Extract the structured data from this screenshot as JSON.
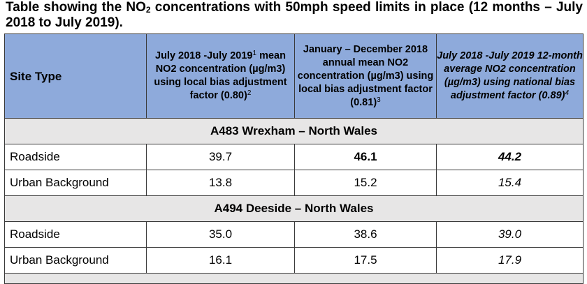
{
  "caption": {
    "before_sub": "Table showing the NO",
    "sub": "2",
    "after_sub": " concentrations with 50mph speed limits in place (12 months – July 2018 to July 2019)."
  },
  "headers": {
    "site_type": "Site Type",
    "col1": "July 2018 -July 2019",
    "col1_sup1": "1",
    "col1_rest": " mean NO2 concentration (µg/m3) using local bias adjustment factor (0.80)",
    "col1_sup2": "2",
    "col2": "January – December 2018 annual mean NO2 concentration (µg/m3) using local bias adjustment factor (0.81)",
    "col2_sup": "3",
    "col3": "July 2018 -July 2019 12-month average NO2 concentration (µg/m3) using national bias adjustment factor (0.89)",
    "col3_sup": "4"
  },
  "sections": [
    {
      "title": "A483 Wrexham – North Wales",
      "rows": [
        {
          "site": "Roadside",
          "v1": "39.7",
          "v2": "46.1",
          "v3": "44.2"
        },
        {
          "site": "Urban Background",
          "v1": "13.8",
          "v2": "15.2",
          "v3": "15.4"
        }
      ]
    },
    {
      "title": "A494 Deeside – North Wales",
      "rows": [
        {
          "site": "Roadside",
          "v1": "35.0",
          "v2": "38.6",
          "v3": "39.0"
        },
        {
          "site": "Urban Background",
          "v1": "16.1",
          "v2": "17.5",
          "v3": "17.9"
        }
      ]
    }
  ]
}
